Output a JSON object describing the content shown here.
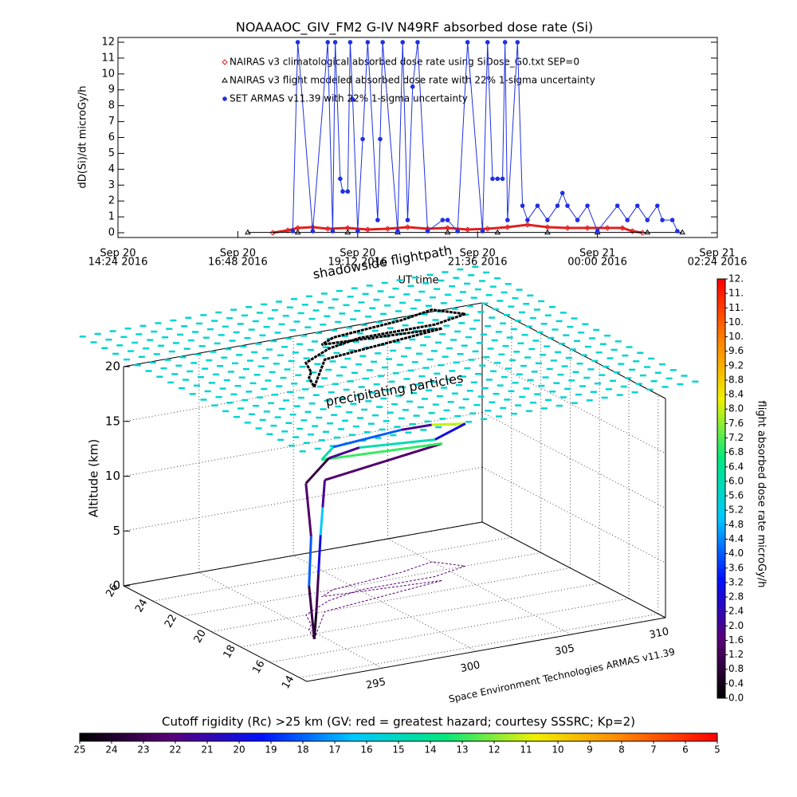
{
  "chart_data": [
    {
      "type": "line",
      "title": "NOAAAOC_GIV_FM2 G-IV    N49RF  absorbed dose rate (Si)",
      "y_label": "dD(Si)/dt microGy/h",
      "x_label": "UT time",
      "xlim": [
        14.4,
        26.4
      ],
      "xticks": [
        {
          "value": 14.4,
          "label": [
            "Sep 20",
            "14:24 2016"
          ]
        },
        {
          "value": 16.8,
          "label": [
            "Sep 20",
            "16:48 2016"
          ]
        },
        {
          "value": 19.2,
          "label": [
            "Sep 20",
            "19:12 2016"
          ]
        },
        {
          "value": 21.6,
          "label": [
            "Sep 20",
            "21:36 2016"
          ]
        },
        {
          "value": 24.0,
          "label": [
            "Sep 21",
            "00:00 2016"
          ]
        },
        {
          "value": 26.4,
          "label": [
            "Sep 21",
            "02:24 2016"
          ]
        }
      ],
      "ylim": [
        -0.3,
        12.3
      ],
      "yticks": [
        0,
        1,
        2,
        3,
        4,
        5,
        6,
        7,
        8,
        9,
        10,
        11,
        12
      ],
      "series": [
        {
          "name": "NAIRAS v3 climatological absorbed dose rate using SiDose_G0.txt SEP=0",
          "color": "#e02020",
          "marker": "diamond",
          "x": [
            17.5,
            17.8,
            18.0,
            18.3,
            18.6,
            19.0,
            19.4,
            19.8,
            20.2,
            20.6,
            21.0,
            21.4,
            21.8,
            22.2,
            22.6,
            23.0,
            23.4,
            23.8,
            24.2,
            24.5,
            24.7,
            24.9
          ],
          "values": [
            0.0,
            0.15,
            0.3,
            0.35,
            0.25,
            0.3,
            0.2,
            0.25,
            0.35,
            0.25,
            0.3,
            0.2,
            0.25,
            0.35,
            0.5,
            0.35,
            0.3,
            0.3,
            0.3,
            0.3,
            0.1,
            0.0
          ]
        },
        {
          "name": "NAIRAS v3 flight modeled absorbed dose rate with 22% 1-sigma uncertainty",
          "color": "#000000",
          "marker": "triangle",
          "x": [
            17.0,
            18.0,
            19.0,
            20.0,
            21.0,
            22.0,
            23.0,
            24.0,
            25.0,
            25.7
          ],
          "values": [
            0.02,
            0.02,
            0.02,
            0.02,
            0.02,
            0.02,
            0.02,
            0.02,
            0.02,
            0.02
          ]
        },
        {
          "name": "SET ARMAS v11.39 with 22% 1-sigma uncertainty",
          "color": "#2030e0",
          "marker": "dot",
          "x": [
            17.9,
            18.0,
            18.3,
            18.6,
            18.7,
            18.75,
            18.85,
            18.9,
            19.0,
            19.05,
            19.1,
            19.2,
            19.3,
            19.4,
            19.6,
            19.65,
            19.7,
            20.0,
            20.1,
            20.2,
            20.3,
            20.4,
            20.6,
            20.9,
            21.0,
            21.2,
            21.4,
            21.7,
            21.8,
            21.9,
            22.0,
            22.1,
            22.15,
            22.2,
            22.4,
            22.5,
            22.6,
            22.8,
            23.0,
            23.2,
            23.3,
            23.4,
            23.6,
            23.8,
            24.0,
            24.4,
            24.6,
            24.8,
            25.0,
            25.2,
            25.3,
            25.5,
            25.6
          ],
          "values": [
            0.1,
            12,
            0.1,
            12,
            0.1,
            12,
            3.4,
            2.6,
            2.6,
            12,
            8.4,
            0.1,
            5.9,
            12,
            0.8,
            5.9,
            12,
            0.1,
            12,
            0.8,
            9.2,
            12,
            0.1,
            0.8,
            0.8,
            0.1,
            12,
            0.1,
            12,
            3.4,
            3.4,
            3.4,
            12,
            0.8,
            12,
            1.7,
            0.8,
            1.7,
            0.8,
            1.7,
            2.5,
            1.7,
            0.8,
            1.7,
            0.1,
            1.7,
            0.8,
            1.7,
            0.8,
            1.7,
            0.8,
            0.8,
            0.1
          ]
        }
      ]
    },
    {
      "type": "path3d",
      "z_label": "Altitude (km)",
      "annotations": [
        "shadowside flightpath",
        "precipitating particles",
        "Space Environment Technologies ARMAS v11.39"
      ],
      "xlim": [
        291,
        310
      ],
      "xticks": [
        295,
        300,
        305,
        310
      ],
      "ylim": [
        13.5,
        26
      ],
      "yticks": [
        14,
        16,
        18,
        20,
        22,
        24,
        26
      ],
      "zlim": [
        0,
        20
      ],
      "zticks": [
        0,
        5,
        10,
        15,
        20
      ],
      "lon": [
        294.5,
        295,
        295.5,
        296,
        296.5,
        297,
        304,
        298,
        299,
        303,
        305,
        306,
        304,
        300,
        298,
        296,
        295.5,
        295,
        294.5
      ],
      "lat": [
        17.5,
        18,
        18.5,
        19,
        19.5,
        20,
        21,
        21.5,
        22,
        22.5,
        23,
        22,
        21.5,
        21.5,
        21,
        20,
        19,
        18.5,
        17.5
      ],
      "alt": [
        0,
        2,
        5,
        8,
        10,
        12,
        12.5,
        12.5,
        13,
        13,
        12.5,
        13,
        12.5,
        13,
        13,
        12,
        8,
        4,
        0
      ],
      "dose": [
        0.4,
        1.2,
        3,
        5,
        2,
        1.5,
        7,
        6,
        4,
        2,
        8,
        3,
        6,
        2,
        1,
        1.5,
        4,
        1,
        0.4
      ],
      "precipitation_layer": {
        "altitude": 22,
        "dose": 5.6
      }
    },
    {
      "type": "colorbar",
      "label": "flight absorbed dose rate microGy/h",
      "lim": [
        0,
        11.6
      ],
      "ticks": [
        {
          "value": 0,
          "label": "0.0"
        },
        0.4,
        0.8,
        {
          "value": 1.2,
          "label": "1.2"
        },
        1.6,
        {
          "value": 2,
          "label": "2.0"
        },
        2.4,
        2.8,
        3.2,
        3.6,
        {
          "value": 4,
          "label": "4.0"
        },
        4.4,
        4.8,
        5.2,
        5.6,
        {
          "value": 6,
          "label": "6.0"
        },
        6.4,
        6.8,
        7.2,
        7.6,
        {
          "value": 8,
          "label": "8.0"
        },
        8.4,
        8.8,
        9.2,
        9.6,
        {
          "value": 10,
          "label": "10."
        },
        {
          "value": 10.4,
          "label": "10."
        },
        {
          "value": 10.8,
          "label": "11."
        },
        {
          "value": 11.2,
          "label": "11."
        },
        {
          "value": 11.6,
          "label": "12."
        }
      ]
    },
    {
      "type": "colorbar",
      "label": "Cutoff rigidity (Rc) >25 km (GV: red = greatest hazard; courtesy SSSRC; Kp=2)",
      "lim": [
        25,
        5
      ],
      "ticks": [
        25,
        24,
        23,
        22,
        21,
        20,
        19,
        18,
        17,
        16,
        15,
        14,
        13,
        12,
        11,
        10,
        9,
        8,
        7,
        6,
        5
      ]
    }
  ],
  "colormap": [
    "#000000",
    "#5a0078",
    "#0010ff",
    "#00c8ff",
    "#00e880",
    "#f0f000",
    "#ff8000",
    "#ff0000"
  ]
}
